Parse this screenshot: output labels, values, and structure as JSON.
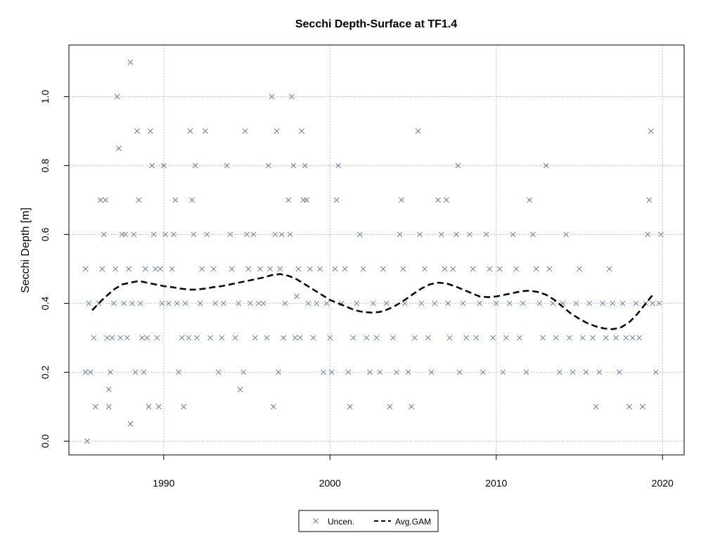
{
  "chart_data": {
    "type": "scatter",
    "title": "Secchi Depth-Surface at TF1.4",
    "xlabel": "",
    "ylabel": "Secchi Depth [m]",
    "xlim": [
      1984.3,
      2021.3
    ],
    "ylim": [
      -0.04,
      1.15
    ],
    "x_ticks": [
      1990,
      2000,
      2010,
      2020
    ],
    "x_tick_labels": [
      "1990",
      "2000",
      "2010",
      "2020"
    ],
    "y_ticks": [
      0.0,
      0.2,
      0.4,
      0.6,
      0.8,
      1.0
    ],
    "y_tick_labels": [
      "0.0",
      "0.2",
      "0.4",
      "0.6",
      "0.8",
      "1.0"
    ],
    "grid": true,
    "legend_position": "bottom-center",
    "colors": {
      "points": "#6b7a8f",
      "gam": "#000000",
      "grid": "#bfbfbf"
    },
    "series": [
      {
        "name": "Uncen.",
        "kind": "points",
        "marker": "x",
        "points": [
          [
            1985.3,
            0.5
          ],
          [
            1985.3,
            0.2
          ],
          [
            1985.4,
            0.0
          ],
          [
            1985.5,
            0.4
          ],
          [
            1985.6,
            0.2
          ],
          [
            1985.8,
            0.3
          ],
          [
            1985.9,
            0.1
          ],
          [
            1986.1,
            0.4
          ],
          [
            1986.2,
            0.7
          ],
          [
            1986.3,
            0.5
          ],
          [
            1986.4,
            0.6
          ],
          [
            1986.5,
            0.7
          ],
          [
            1986.6,
            0.3
          ],
          [
            1986.7,
            0.15
          ],
          [
            1986.7,
            0.1
          ],
          [
            1986.8,
            0.2
          ],
          [
            1986.9,
            0.3
          ],
          [
            1987.0,
            0.4
          ],
          [
            1987.1,
            0.5
          ],
          [
            1987.2,
            1.0
          ],
          [
            1987.3,
            0.85
          ],
          [
            1987.4,
            0.3
          ],
          [
            1987.5,
            0.6
          ],
          [
            1987.6,
            0.4
          ],
          [
            1987.7,
            0.6
          ],
          [
            1987.8,
            0.3
          ],
          [
            1987.9,
            0.5
          ],
          [
            1988.0,
            1.1
          ],
          [
            1988.0,
            0.05
          ],
          [
            1988.1,
            0.4
          ],
          [
            1988.2,
            0.6
          ],
          [
            1988.3,
            0.2
          ],
          [
            1988.4,
            0.9
          ],
          [
            1988.5,
            0.7
          ],
          [
            1988.6,
            0.4
          ],
          [
            1988.7,
            0.3
          ],
          [
            1988.8,
            0.2
          ],
          [
            1988.9,
            0.5
          ],
          [
            1989.0,
            0.3
          ],
          [
            1989.1,
            0.1
          ],
          [
            1989.2,
            0.9
          ],
          [
            1989.3,
            0.8
          ],
          [
            1989.4,
            0.6
          ],
          [
            1989.5,
            0.5
          ],
          [
            1989.6,
            0.3
          ],
          [
            1989.7,
            0.1
          ],
          [
            1989.8,
            0.5
          ],
          [
            1989.9,
            0.4
          ],
          [
            1990.0,
            0.8
          ],
          [
            1990.1,
            0.6
          ],
          [
            1990.3,
            0.4
          ],
          [
            1990.5,
            0.5
          ],
          [
            1990.6,
            0.6
          ],
          [
            1990.7,
            0.7
          ],
          [
            1990.8,
            0.4
          ],
          [
            1990.9,
            0.2
          ],
          [
            1991.1,
            0.3
          ],
          [
            1991.2,
            0.1
          ],
          [
            1991.3,
            0.4
          ],
          [
            1991.5,
            0.3
          ],
          [
            1991.6,
            0.9
          ],
          [
            1991.7,
            0.7
          ],
          [
            1991.8,
            0.6
          ],
          [
            1991.9,
            0.8
          ],
          [
            1992.0,
            0.3
          ],
          [
            1992.2,
            0.4
          ],
          [
            1992.3,
            0.5
          ],
          [
            1992.5,
            0.9
          ],
          [
            1992.6,
            0.6
          ],
          [
            1992.8,
            0.3
          ],
          [
            1993.0,
            0.5
          ],
          [
            1993.1,
            0.4
          ],
          [
            1993.3,
            0.2
          ],
          [
            1993.5,
            0.3
          ],
          [
            1993.6,
            0.4
          ],
          [
            1993.8,
            0.8
          ],
          [
            1994.0,
            0.6
          ],
          [
            1994.1,
            0.5
          ],
          [
            1994.3,
            0.3
          ],
          [
            1994.5,
            0.4
          ],
          [
            1994.6,
            0.15
          ],
          [
            1994.8,
            0.2
          ],
          [
            1994.9,
            0.9
          ],
          [
            1995.0,
            0.6
          ],
          [
            1995.1,
            0.5
          ],
          [
            1995.2,
            0.4
          ],
          [
            1995.4,
            0.6
          ],
          [
            1995.5,
            0.3
          ],
          [
            1995.7,
            0.4
          ],
          [
            1995.8,
            0.5
          ],
          [
            1996.0,
            0.4
          ],
          [
            1996.2,
            0.3
          ],
          [
            1996.3,
            0.8
          ],
          [
            1996.4,
            0.5
          ],
          [
            1996.5,
            1.0
          ],
          [
            1996.6,
            0.1
          ],
          [
            1996.7,
            0.6
          ],
          [
            1996.8,
            0.9
          ],
          [
            1996.9,
            0.2
          ],
          [
            1997.0,
            0.5
          ],
          [
            1997.1,
            0.6
          ],
          [
            1997.2,
            0.3
          ],
          [
            1997.3,
            0.4
          ],
          [
            1997.5,
            0.7
          ],
          [
            1997.6,
            0.6
          ],
          [
            1997.7,
            1.0
          ],
          [
            1997.8,
            0.8
          ],
          [
            1997.9,
            0.3
          ],
          [
            1998.0,
            0.42
          ],
          [
            1998.1,
            0.5
          ],
          [
            1998.2,
            0.3
          ],
          [
            1998.3,
            0.9
          ],
          [
            1998.4,
            0.7
          ],
          [
            1998.5,
            0.8
          ],
          [
            1998.6,
            0.7
          ],
          [
            1998.7,
            0.4
          ],
          [
            1998.8,
            0.5
          ],
          [
            1999.0,
            0.3
          ],
          [
            1999.2,
            0.4
          ],
          [
            1999.4,
            0.5
          ],
          [
            1999.6,
            0.2
          ],
          [
            1999.8,
            0.4
          ],
          [
            2000.0,
            0.3
          ],
          [
            2000.1,
            0.2
          ],
          [
            2000.3,
            0.5
          ],
          [
            2000.4,
            0.7
          ],
          [
            2000.5,
            0.8
          ],
          [
            2000.7,
            0.4
          ],
          [
            2000.9,
            0.5
          ],
          [
            2001.1,
            0.2
          ],
          [
            2001.2,
            0.1
          ],
          [
            2001.4,
            0.3
          ],
          [
            2001.6,
            0.4
          ],
          [
            2001.8,
            0.6
          ],
          [
            2002.0,
            0.5
          ],
          [
            2002.2,
            0.3
          ],
          [
            2002.4,
            0.2
          ],
          [
            2002.6,
            0.4
          ],
          [
            2002.8,
            0.3
          ],
          [
            2003.0,
            0.2
          ],
          [
            2003.2,
            0.5
          ],
          [
            2003.4,
            0.4
          ],
          [
            2003.6,
            0.1
          ],
          [
            2003.8,
            0.3
          ],
          [
            2004.0,
            0.2
          ],
          [
            2004.2,
            0.6
          ],
          [
            2004.3,
            0.7
          ],
          [
            2004.4,
            0.5
          ],
          [
            2004.5,
            0.4
          ],
          [
            2004.7,
            0.2
          ],
          [
            2004.9,
            0.1
          ],
          [
            2005.1,
            0.3
          ],
          [
            2005.3,
            0.9
          ],
          [
            2005.4,
            0.6
          ],
          [
            2005.5,
            0.4
          ],
          [
            2005.7,
            0.5
          ],
          [
            2005.9,
            0.3
          ],
          [
            2006.1,
            0.2
          ],
          [
            2006.3,
            0.4
          ],
          [
            2006.5,
            0.7
          ],
          [
            2006.7,
            0.6
          ],
          [
            2006.9,
            0.5
          ],
          [
            2007.0,
            0.7
          ],
          [
            2007.1,
            0.4
          ],
          [
            2007.2,
            0.3
          ],
          [
            2007.4,
            0.5
          ],
          [
            2007.6,
            0.6
          ],
          [
            2007.7,
            0.8
          ],
          [
            2007.8,
            0.2
          ],
          [
            2008.0,
            0.4
          ],
          [
            2008.2,
            0.3
          ],
          [
            2008.4,
            0.6
          ],
          [
            2008.6,
            0.5
          ],
          [
            2008.8,
            0.3
          ],
          [
            2009.0,
            0.4
          ],
          [
            2009.2,
            0.2
          ],
          [
            2009.4,
            0.6
          ],
          [
            2009.6,
            0.5
          ],
          [
            2009.8,
            0.3
          ],
          [
            2010.0,
            0.4
          ],
          [
            2010.2,
            0.5
          ],
          [
            2010.4,
            0.2
          ],
          [
            2010.6,
            0.3
          ],
          [
            2010.8,
            0.4
          ],
          [
            2011.0,
            0.6
          ],
          [
            2011.2,
            0.5
          ],
          [
            2011.4,
            0.3
          ],
          [
            2011.6,
            0.4
          ],
          [
            2011.8,
            0.2
          ],
          [
            2012.0,
            0.7
          ],
          [
            2012.2,
            0.6
          ],
          [
            2012.4,
            0.5
          ],
          [
            2012.6,
            0.4
          ],
          [
            2012.8,
            0.3
          ],
          [
            2013.0,
            0.8
          ],
          [
            2013.2,
            0.5
          ],
          [
            2013.4,
            0.4
          ],
          [
            2013.6,
            0.3
          ],
          [
            2013.8,
            0.2
          ],
          [
            2014.0,
            0.4
          ],
          [
            2014.2,
            0.6
          ],
          [
            2014.4,
            0.3
          ],
          [
            2014.6,
            0.2
          ],
          [
            2014.8,
            0.4
          ],
          [
            2015.0,
            0.5
          ],
          [
            2015.2,
            0.3
          ],
          [
            2015.4,
            0.2
          ],
          [
            2015.6,
            0.4
          ],
          [
            2015.8,
            0.3
          ],
          [
            2016.0,
            0.1
          ],
          [
            2016.2,
            0.2
          ],
          [
            2016.4,
            0.4
          ],
          [
            2016.6,
            0.3
          ],
          [
            2016.8,
            0.5
          ],
          [
            2017.0,
            0.4
          ],
          [
            2017.2,
            0.3
          ],
          [
            2017.4,
            0.2
          ],
          [
            2017.6,
            0.4
          ],
          [
            2017.8,
            0.3
          ],
          [
            2018.0,
            0.1
          ],
          [
            2018.2,
            0.3
          ],
          [
            2018.4,
            0.4
          ],
          [
            2018.6,
            0.3
          ],
          [
            2018.8,
            0.1
          ],
          [
            2019.0,
            0.4
          ],
          [
            2019.1,
            0.6
          ],
          [
            2019.2,
            0.7
          ],
          [
            2019.3,
            0.9
          ],
          [
            2019.4,
            0.4
          ],
          [
            2019.6,
            0.2
          ],
          [
            2019.8,
            0.4
          ],
          [
            2019.9,
            0.6
          ]
        ]
      },
      {
        "name": "Avg.GAM",
        "kind": "line",
        "dash": true,
        "points": [
          [
            1985.7,
            0.38
          ],
          [
            1986.3,
            0.41
          ],
          [
            1987.0,
            0.44
          ],
          [
            1987.5,
            0.455
          ],
          [
            1988.0,
            0.46
          ],
          [
            1988.5,
            0.465
          ],
          [
            1989.0,
            0.46
          ],
          [
            1989.5,
            0.455
          ],
          [
            1990.0,
            0.45
          ],
          [
            1990.5,
            0.447
          ],
          [
            1991.0,
            0.443
          ],
          [
            1991.5,
            0.44
          ],
          [
            1992.0,
            0.44
          ],
          [
            1992.5,
            0.443
          ],
          [
            1993.0,
            0.447
          ],
          [
            1993.5,
            0.45
          ],
          [
            1994.0,
            0.455
          ],
          [
            1994.5,
            0.46
          ],
          [
            1995.0,
            0.465
          ],
          [
            1995.5,
            0.47
          ],
          [
            1996.0,
            0.475
          ],
          [
            1996.5,
            0.482
          ],
          [
            1997.0,
            0.485
          ],
          [
            1997.5,
            0.48
          ],
          [
            1998.0,
            0.47
          ],
          [
            1998.5,
            0.455
          ],
          [
            1999.0,
            0.44
          ],
          [
            1999.5,
            0.425
          ],
          [
            2000.0,
            0.41
          ],
          [
            2000.5,
            0.4
          ],
          [
            2001.0,
            0.39
          ],
          [
            2001.5,
            0.38
          ],
          [
            2002.0,
            0.375
          ],
          [
            2002.5,
            0.373
          ],
          [
            2003.0,
            0.375
          ],
          [
            2003.5,
            0.383
          ],
          [
            2004.0,
            0.395
          ],
          [
            2004.5,
            0.41
          ],
          [
            2005.0,
            0.427
          ],
          [
            2005.5,
            0.443
          ],
          [
            2006.0,
            0.455
          ],
          [
            2006.5,
            0.46
          ],
          [
            2007.0,
            0.458
          ],
          [
            2007.5,
            0.45
          ],
          [
            2008.0,
            0.44
          ],
          [
            2008.5,
            0.43
          ],
          [
            2009.0,
            0.42
          ],
          [
            2009.5,
            0.418
          ],
          [
            2010.0,
            0.42
          ],
          [
            2010.5,
            0.425
          ],
          [
            2011.0,
            0.43
          ],
          [
            2011.5,
            0.435
          ],
          [
            2012.0,
            0.437
          ],
          [
            2012.5,
            0.433
          ],
          [
            2013.0,
            0.425
          ],
          [
            2013.5,
            0.41
          ],
          [
            2014.0,
            0.39
          ],
          [
            2014.5,
            0.37
          ],
          [
            2015.0,
            0.355
          ],
          [
            2015.5,
            0.342
          ],
          [
            2016.0,
            0.333
          ],
          [
            2016.5,
            0.327
          ],
          [
            2017.0,
            0.325
          ],
          [
            2017.5,
            0.33
          ],
          [
            2018.0,
            0.345
          ],
          [
            2018.5,
            0.37
          ],
          [
            2019.0,
            0.4
          ],
          [
            2019.5,
            0.43
          ]
        ]
      }
    ]
  }
}
